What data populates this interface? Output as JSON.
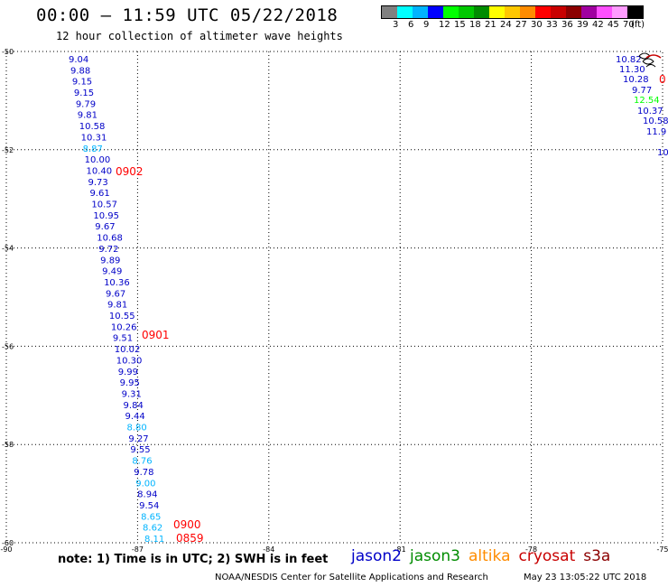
{
  "title": "00:00 – 11:59 UTC 05/22/2018",
  "subtitle": "12 hour collection of altimeter wave heights",
  "legend": {
    "colors": [
      "#808080",
      "#00ffff",
      "#00b4ff",
      "#0000ff",
      "#00ff00",
      "#00c800",
      "#008c00",
      "#ffff00",
      "#ffc800",
      "#ff8c00",
      "#ff0000",
      "#c80000",
      "#8c0000",
      "#a000a0",
      "#ff50ff",
      "#ff9bff",
      "#000000"
    ],
    "labels": [
      "3",
      "6",
      "9",
      "12",
      "15",
      "18",
      "21",
      "24",
      "27",
      "30",
      "33",
      "36",
      "39",
      "42",
      "45",
      "70",
      "(ft)"
    ]
  },
  "map": {
    "lon_range": [
      -90,
      -75
    ],
    "lat_range": [
      -60,
      -50
    ],
    "lon_labels": [
      "-90",
      "-87",
      "-84",
      "-81",
      "-78",
      "-75"
    ],
    "lat_labels": [
      "-50",
      "-52",
      "-54",
      "-56",
      "-58",
      "-60"
    ],
    "left_track": {
      "values": [
        "9.04",
        "9.88",
        "9.15",
        "9.15",
        "9.79",
        "9.81",
        "10.58",
        "10.31",
        "8.87",
        "10.00",
        "10.40",
        "9.73",
        "9.61",
        "10.57",
        "10.95",
        "9.67",
        "10.68",
        "9.72",
        "9.89",
        "9.49",
        "10.36",
        "9.67",
        "9.81",
        "10.55",
        "10.26",
        "9.51",
        "10.02",
        "10.30",
        "9.99",
        "9.95",
        "9.31",
        "9.84",
        "9.44",
        "8.80",
        "9.27",
        "9.55",
        "8.76",
        "9.78",
        "9.00",
        "8.94",
        "9.54",
        "8.65",
        "8.62",
        "8.11"
      ],
      "colors": [
        "#0000c8",
        "#0000c8",
        "#0000c8",
        "#0000c8",
        "#0000c8",
        "#0000c8",
        "#0000c8",
        "#0000c8",
        "#00b4ff",
        "#0000c8",
        "#0000c8",
        "#0000c8",
        "#0000c8",
        "#0000c8",
        "#0000c8",
        "#0000c8",
        "#0000c8",
        "#0000c8",
        "#0000c8",
        "#0000c8",
        "#0000c8",
        "#0000c8",
        "#0000c8",
        "#0000c8",
        "#0000c8",
        "#0000c8",
        "#0000c8",
        "#0000c8",
        "#0000c8",
        "#0000c8",
        "#0000c8",
        "#0000c8",
        "#0000c8",
        "#00b4ff",
        "#0000c8",
        "#0000c8",
        "#00b4ff",
        "#0000c8",
        "#00b4ff",
        "#0000c8",
        "#0000c8",
        "#00b4ff",
        "#00b4ff",
        "#00b4ff"
      ],
      "times": [
        "0902",
        "0901",
        "0900",
        "0859"
      ],
      "time_color": "#ff0000"
    },
    "right_track": {
      "values": [
        "10.82",
        "11.30",
        "10.28",
        "9.77",
        "12.54",
        "10.37",
        "10.58",
        "11.9",
        "10"
      ],
      "colors": [
        "#0000c8",
        "#0000c8",
        "#0000c8",
        "#0000c8",
        "#00ff00",
        "#0000c8",
        "#0000c8",
        "#0000c8",
        "#0000c8"
      ],
      "time_fragment": "0",
      "time_color": "#ff0000"
    }
  },
  "footer": {
    "note": "note: 1) Time is in UTC; 2) SWH is in feet",
    "satellites": [
      {
        "name": "jason2",
        "color": "#0000c8"
      },
      {
        "name": "jason3",
        "color": "#008c00"
      },
      {
        "name": "altika",
        "color": "#ff8c00"
      },
      {
        "name": "cryosat",
        "color": "#c80000"
      },
      {
        "name": "s3a",
        "color": "#8c0000"
      }
    ],
    "credit": "NOAA/NESDIS Center for Satellite Applications and Research",
    "timestamp": "May 23 13:05:22 UTC 2018"
  }
}
